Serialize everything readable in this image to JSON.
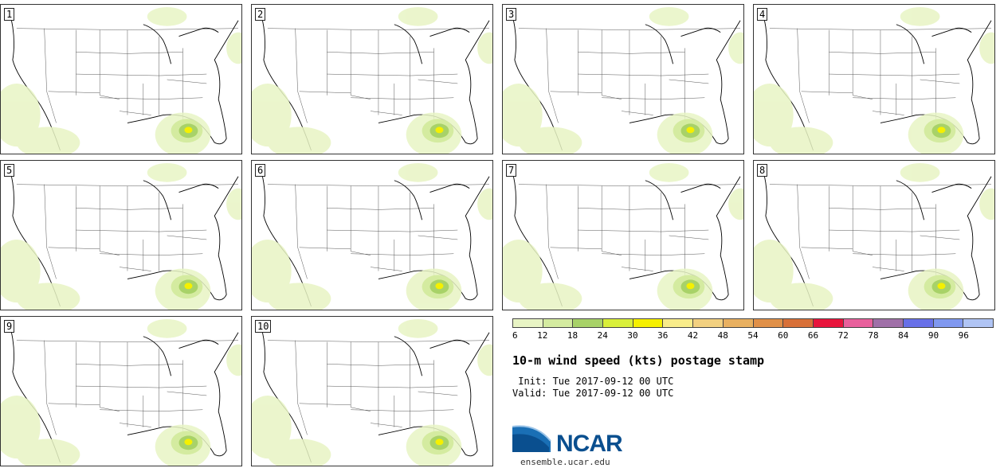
{
  "panels": [
    {
      "label": "1"
    },
    {
      "label": "2"
    },
    {
      "label": "3"
    },
    {
      "label": "4"
    },
    {
      "label": "5"
    },
    {
      "label": "6"
    },
    {
      "label": "7"
    },
    {
      "label": "8"
    },
    {
      "label": "9"
    },
    {
      "label": "10"
    }
  ],
  "colorbar": {
    "ticks": [
      "6",
      "12",
      "18",
      "24",
      "30",
      "36",
      "42",
      "48",
      "54",
      "60",
      "66",
      "72",
      "78",
      "84",
      "90",
      "96"
    ],
    "colors": [
      "#e8f4c4",
      "#d4eba0",
      "#a8d268",
      "#d9ef3a",
      "#f5f000",
      "#f8ec8a",
      "#f2d080",
      "#e8b060",
      "#e09048",
      "#d87038",
      "#e8143c",
      "#e8609c",
      "#a070a8",
      "#6870e8",
      "#8098f0",
      "#b0c4f4"
    ]
  },
  "title": "10-m wind speed (kts) postage stamp",
  "init": " Init: Tue 2017-09-12 00 UTC",
  "valid": "Valid: Tue 2017-09-12 00 UTC",
  "logo": {
    "text": "NCAR",
    "url": "ensemble.ucar.edu"
  }
}
